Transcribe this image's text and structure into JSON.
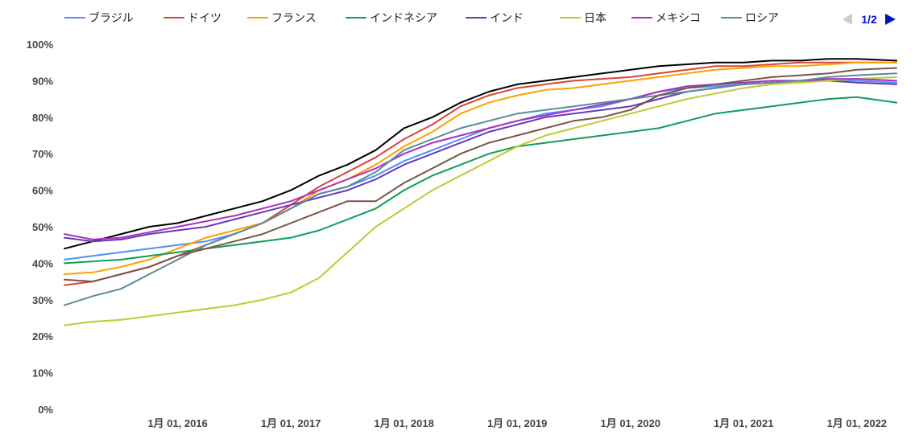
{
  "chart_data": {
    "type": "line",
    "x_ticks": [
      "1月 01, 2016",
      "1月 01, 2017",
      "1月 01, 2018",
      "1月 01, 2019",
      "1月 01, 2020",
      "1月 01, 2021",
      "1月 01, 2022"
    ],
    "y_ticks": [
      "0%",
      "10%",
      "20%",
      "30%",
      "40%",
      "50%",
      "60%",
      "70%",
      "80%",
      "90%",
      "100%"
    ],
    "ylim": [
      0,
      100
    ],
    "xlim": [
      2015.0,
      2022.35
    ],
    "grid": false,
    "legend_position": "top",
    "pager": "1/2",
    "series": [
      {
        "name": "",
        "color": "#000000",
        "points": [
          [
            2015.0,
            44
          ],
          [
            2015.25,
            46
          ],
          [
            2015.5,
            48
          ],
          [
            2015.75,
            50
          ],
          [
            2016.0,
            51
          ],
          [
            2016.25,
            53
          ],
          [
            2016.5,
            55
          ],
          [
            2016.75,
            57
          ],
          [
            2017.0,
            60
          ],
          [
            2017.25,
            64
          ],
          [
            2017.5,
            67
          ],
          [
            2017.75,
            71
          ],
          [
            2018.0,
            77
          ],
          [
            2018.25,
            80
          ],
          [
            2018.5,
            84
          ],
          [
            2018.75,
            87
          ],
          [
            2019.0,
            89
          ],
          [
            2019.25,
            90
          ],
          [
            2019.5,
            91
          ],
          [
            2019.75,
            92
          ],
          [
            2020.0,
            93
          ],
          [
            2020.25,
            94
          ],
          [
            2020.5,
            94.5
          ],
          [
            2020.75,
            95
          ],
          [
            2021.0,
            95
          ],
          [
            2021.25,
            95.5
          ],
          [
            2021.5,
            95.5
          ],
          [
            2021.75,
            96
          ],
          [
            2022.0,
            96
          ],
          [
            2022.35,
            95.5
          ]
        ]
      },
      {
        "name": "ブラジル",
        "color": "#4d90fe",
        "points": [
          [
            2015.0,
            41
          ],
          [
            2015.25,
            42
          ],
          [
            2015.5,
            43
          ],
          [
            2015.75,
            44
          ],
          [
            2016.0,
            45
          ],
          [
            2016.25,
            46
          ],
          [
            2016.5,
            48
          ],
          [
            2016.75,
            51
          ],
          [
            2017.0,
            55
          ],
          [
            2017.25,
            59
          ],
          [
            2017.5,
            61
          ],
          [
            2017.75,
            64
          ],
          [
            2018.0,
            68
          ],
          [
            2018.25,
            71
          ],
          [
            2018.5,
            74
          ],
          [
            2018.75,
            77
          ],
          [
            2019.0,
            79
          ],
          [
            2019.25,
            81
          ],
          [
            2019.5,
            82
          ],
          [
            2019.75,
            83
          ],
          [
            2020.0,
            85
          ],
          [
            2020.25,
            87
          ],
          [
            2020.5,
            88
          ],
          [
            2020.75,
            88.5
          ],
          [
            2021.0,
            89
          ],
          [
            2021.25,
            89.5
          ],
          [
            2021.5,
            90
          ],
          [
            2021.75,
            90
          ],
          [
            2022.0,
            90
          ],
          [
            2022.35,
            89.5
          ]
        ]
      },
      {
        "name": "ドイツ",
        "color": "#db4437",
        "points": [
          [
            2015.0,
            34
          ],
          [
            2015.25,
            35
          ],
          [
            2015.5,
            37
          ],
          [
            2015.75,
            39
          ],
          [
            2016.0,
            42
          ],
          [
            2016.25,
            45
          ],
          [
            2016.5,
            48
          ],
          [
            2016.75,
            51
          ],
          [
            2017.0,
            56
          ],
          [
            2017.25,
            61
          ],
          [
            2017.5,
            65
          ],
          [
            2017.75,
            69
          ],
          [
            2018.0,
            74
          ],
          [
            2018.25,
            78
          ],
          [
            2018.5,
            83
          ],
          [
            2018.75,
            86
          ],
          [
            2019.0,
            88
          ],
          [
            2019.25,
            89
          ],
          [
            2019.5,
            90
          ],
          [
            2019.75,
            90.5
          ],
          [
            2020.0,
            91
          ],
          [
            2020.25,
            92
          ],
          [
            2020.5,
            93
          ],
          [
            2020.75,
            94
          ],
          [
            2021.0,
            94
          ],
          [
            2021.25,
            94.5
          ],
          [
            2021.5,
            95
          ],
          [
            2021.75,
            95
          ],
          [
            2022.0,
            95
          ],
          [
            2022.35,
            95
          ]
        ]
      },
      {
        "name": "フランス",
        "color": "#ffa000",
        "points": [
          [
            2015.0,
            37
          ],
          [
            2015.25,
            37.5
          ],
          [
            2015.5,
            39
          ],
          [
            2015.75,
            41
          ],
          [
            2016.0,
            44
          ],
          [
            2016.25,
            47
          ],
          [
            2016.5,
            49
          ],
          [
            2016.75,
            51
          ],
          [
            2017.0,
            55
          ],
          [
            2017.25,
            60
          ],
          [
            2017.5,
            63
          ],
          [
            2017.75,
            67
          ],
          [
            2018.0,
            72
          ],
          [
            2018.25,
            76
          ],
          [
            2018.5,
            81
          ],
          [
            2018.75,
            84
          ],
          [
            2019.0,
            86
          ],
          [
            2019.25,
            87.5
          ],
          [
            2019.5,
            88
          ],
          [
            2019.75,
            89
          ],
          [
            2020.0,
            90
          ],
          [
            2020.25,
            91
          ],
          [
            2020.5,
            92
          ],
          [
            2020.75,
            93
          ],
          [
            2021.0,
            93.5
          ],
          [
            2021.25,
            94
          ],
          [
            2021.5,
            94
          ],
          [
            2021.75,
            94.5
          ],
          [
            2022.0,
            95
          ],
          [
            2022.35,
            95
          ]
        ]
      },
      {
        "name": "インドネシア",
        "color": "#0f9d58",
        "points": [
          [
            2015.0,
            40
          ],
          [
            2015.25,
            40.5
          ],
          [
            2015.5,
            41
          ],
          [
            2015.75,
            42
          ],
          [
            2016.0,
            43
          ],
          [
            2016.25,
            44
          ],
          [
            2016.5,
            45
          ],
          [
            2016.75,
            46
          ],
          [
            2017.0,
            47
          ],
          [
            2017.25,
            49
          ],
          [
            2017.5,
            52
          ],
          [
            2017.75,
            55
          ],
          [
            2018.0,
            60
          ],
          [
            2018.25,
            64
          ],
          [
            2018.5,
            67
          ],
          [
            2018.75,
            70
          ],
          [
            2019.0,
            72
          ],
          [
            2019.25,
            73
          ],
          [
            2019.5,
            74
          ],
          [
            2019.75,
            75
          ],
          [
            2020.0,
            76
          ],
          [
            2020.25,
            77
          ],
          [
            2020.5,
            79
          ],
          [
            2020.75,
            81
          ],
          [
            2021.0,
            82
          ],
          [
            2021.25,
            83
          ],
          [
            2021.5,
            84
          ],
          [
            2021.75,
            85
          ],
          [
            2022.0,
            85.5
          ],
          [
            2022.35,
            84
          ]
        ]
      },
      {
        "name": "インド",
        "color": "#673ab7",
        "points": [
          [
            2015.0,
            47
          ],
          [
            2015.25,
            46
          ],
          [
            2015.5,
            46.5
          ],
          [
            2015.75,
            48
          ],
          [
            2016.0,
            49
          ],
          [
            2016.25,
            50
          ],
          [
            2016.5,
            52
          ],
          [
            2016.75,
            54
          ],
          [
            2017.0,
            56
          ],
          [
            2017.25,
            58
          ],
          [
            2017.5,
            60
          ],
          [
            2017.75,
            63
          ],
          [
            2018.0,
            67
          ],
          [
            2018.25,
            70
          ],
          [
            2018.5,
            73
          ],
          [
            2018.75,
            76
          ],
          [
            2019.0,
            78
          ],
          [
            2019.25,
            80
          ],
          [
            2019.5,
            81
          ],
          [
            2019.75,
            82
          ],
          [
            2020.0,
            83
          ],
          [
            2020.25,
            85
          ],
          [
            2020.5,
            87
          ],
          [
            2020.75,
            88
          ],
          [
            2021.0,
            89
          ],
          [
            2021.25,
            89.5
          ],
          [
            2021.5,
            90
          ],
          [
            2021.75,
            90
          ],
          [
            2022.0,
            89.5
          ],
          [
            2022.35,
            89
          ]
        ]
      },
      {
        "name": "日本",
        "color": "#c0ca33",
        "points": [
          [
            2015.0,
            23
          ],
          [
            2015.25,
            24
          ],
          [
            2015.5,
            24.5
          ],
          [
            2015.75,
            25.5
          ],
          [
            2016.0,
            26.5
          ],
          [
            2016.25,
            27.5
          ],
          [
            2016.5,
            28.5
          ],
          [
            2016.75,
            30
          ],
          [
            2017.0,
            32
          ],
          [
            2017.25,
            36
          ],
          [
            2017.5,
            43
          ],
          [
            2017.75,
            50
          ],
          [
            2018.0,
            55
          ],
          [
            2018.25,
            60
          ],
          [
            2018.5,
            64
          ],
          [
            2018.75,
            68
          ],
          [
            2019.0,
            72
          ],
          [
            2019.25,
            75
          ],
          [
            2019.5,
            77
          ],
          [
            2019.75,
            79
          ],
          [
            2020.0,
            81
          ],
          [
            2020.25,
            83
          ],
          [
            2020.5,
            85
          ],
          [
            2020.75,
            86.5
          ],
          [
            2021.0,
            88
          ],
          [
            2021.25,
            89
          ],
          [
            2021.5,
            89.5
          ],
          [
            2021.75,
            90
          ],
          [
            2022.0,
            90.5
          ],
          [
            2022.35,
            91
          ]
        ]
      },
      {
        "name": "メキシコ",
        "color": "#ab30c4",
        "points": [
          [
            2015.0,
            48
          ],
          [
            2015.25,
            46.5
          ],
          [
            2015.5,
            47
          ],
          [
            2015.75,
            48.5
          ],
          [
            2016.0,
            50
          ],
          [
            2016.25,
            51.5
          ],
          [
            2016.5,
            53
          ],
          [
            2016.75,
            55
          ],
          [
            2017.0,
            57
          ],
          [
            2017.25,
            60
          ],
          [
            2017.5,
            63
          ],
          [
            2017.75,
            66
          ],
          [
            2018.0,
            70
          ],
          [
            2018.25,
            73
          ],
          [
            2018.5,
            75
          ],
          [
            2018.75,
            77
          ],
          [
            2019.0,
            79
          ],
          [
            2019.25,
            80.5
          ],
          [
            2019.5,
            82
          ],
          [
            2019.75,
            83.5
          ],
          [
            2020.0,
            85
          ],
          [
            2020.25,
            87
          ],
          [
            2020.5,
            88.5
          ],
          [
            2020.75,
            89
          ],
          [
            2021.0,
            89.5
          ],
          [
            2021.25,
            90
          ],
          [
            2021.5,
            90
          ],
          [
            2021.75,
            90.5
          ],
          [
            2022.0,
            90.5
          ],
          [
            2022.35,
            90
          ]
        ]
      },
      {
        "name": "ロシア",
        "color": "#5d8a9a",
        "points": [
          [
            2015.0,
            28.5
          ],
          [
            2015.25,
            31
          ],
          [
            2015.5,
            33
          ],
          [
            2015.75,
            37
          ],
          [
            2016.0,
            41
          ],
          [
            2016.25,
            45
          ],
          [
            2016.5,
            48
          ],
          [
            2016.75,
            51
          ],
          [
            2017.0,
            55
          ],
          [
            2017.25,
            59
          ],
          [
            2017.5,
            61
          ],
          [
            2017.75,
            65
          ],
          [
            2018.0,
            71
          ],
          [
            2018.25,
            74
          ],
          [
            2018.5,
            77
          ],
          [
            2018.75,
            79
          ],
          [
            2019.0,
            81
          ],
          [
            2019.25,
            82
          ],
          [
            2019.5,
            83
          ],
          [
            2019.75,
            84
          ],
          [
            2020.0,
            85
          ],
          [
            2020.25,
            86
          ],
          [
            2020.5,
            87
          ],
          [
            2020.75,
            88
          ],
          [
            2021.0,
            89
          ],
          [
            2021.25,
            89.5
          ],
          [
            2021.5,
            90
          ],
          [
            2021.75,
            91
          ],
          [
            2022.0,
            91.5
          ],
          [
            2022.35,
            92
          ]
        ]
      },
      {
        "name": "",
        "color": "#795548",
        "points": [
          [
            2015.0,
            35.5
          ],
          [
            2015.25,
            35
          ],
          [
            2015.5,
            37
          ],
          [
            2015.75,
            39
          ],
          [
            2016.0,
            42
          ],
          [
            2016.25,
            44
          ],
          [
            2016.5,
            46
          ],
          [
            2016.75,
            48
          ],
          [
            2017.0,
            51
          ],
          [
            2017.25,
            54
          ],
          [
            2017.5,
            57
          ],
          [
            2017.75,
            57
          ],
          [
            2018.0,
            62
          ],
          [
            2018.25,
            66
          ],
          [
            2018.5,
            70
          ],
          [
            2018.75,
            73
          ],
          [
            2019.0,
            75
          ],
          [
            2019.25,
            77
          ],
          [
            2019.5,
            79
          ],
          [
            2019.75,
            80
          ],
          [
            2020.0,
            82
          ],
          [
            2020.25,
            86
          ],
          [
            2020.5,
            88
          ],
          [
            2020.75,
            89
          ],
          [
            2021.0,
            90
          ],
          [
            2021.25,
            91
          ],
          [
            2021.5,
            91.5
          ],
          [
            2021.75,
            92
          ],
          [
            2022.0,
            93
          ],
          [
            2022.35,
            93.5
          ]
        ]
      }
    ]
  }
}
